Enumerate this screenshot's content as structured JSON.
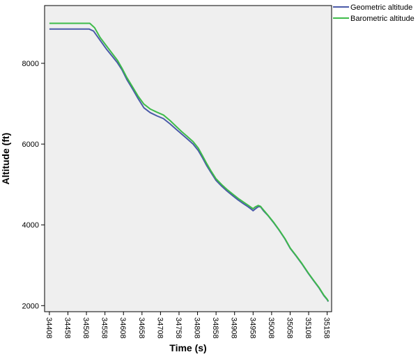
{
  "chart_data": {
    "type": "line",
    "xlabel": "Time (s)",
    "ylabel": "Altitude (ft)",
    "xlim": [
      34395,
      35170
    ],
    "ylim": [
      1850,
      9430
    ],
    "x_ticks": [
      34408,
      34458,
      34508,
      34558,
      34608,
      34658,
      34708,
      34758,
      34808,
      34858,
      34908,
      34958,
      35008,
      35058,
      35108,
      35158
    ],
    "y_ticks": [
      2000,
      4000,
      6000,
      8000
    ],
    "grid": false,
    "legend_position": "top-right",
    "series": [
      {
        "name": "Geometric altitude",
        "color": "#4a5aa8",
        "x": [
          34408,
          34508,
          34515,
          34527,
          34545,
          34563,
          34578,
          34592,
          34604,
          34617,
          34633,
          34648,
          34663,
          34680,
          34698,
          34716,
          34734,
          34751,
          34765,
          34779,
          34796,
          34810,
          34822,
          34832,
          34844,
          34858,
          34873,
          34887,
          34902,
          34917,
          34931,
          34944,
          34953,
          34958,
          34963,
          34972,
          34978,
          34986,
          34998,
          35013,
          35028,
          35044,
          35058,
          35074,
          35090,
          35107,
          35122,
          35136,
          35149,
          35158,
          35161
        ],
        "y": [
          8850,
          8850,
          8850,
          8800,
          8570,
          8340,
          8170,
          8010,
          7840,
          7600,
          7360,
          7120,
          6900,
          6780,
          6700,
          6630,
          6500,
          6360,
          6250,
          6140,
          6000,
          5840,
          5650,
          5480,
          5300,
          5100,
          4960,
          4840,
          4730,
          4620,
          4530,
          4450,
          4390,
          4350,
          4390,
          4450,
          4450,
          4350,
          4230,
          4060,
          3870,
          3650,
          3420,
          3230,
          3030,
          2800,
          2610,
          2440,
          2250,
          2150,
          2100
        ]
      },
      {
        "name": "Barometric altitude",
        "color": "#3ebb4a",
        "x": [
          34408,
          34508,
          34517,
          34530,
          34545,
          34563,
          34578,
          34592,
          34604,
          34617,
          34633,
          34648,
          34663,
          34680,
          34698,
          34716,
          34734,
          34751,
          34765,
          34779,
          34796,
          34810,
          34822,
          34832,
          34844,
          34858,
          34873,
          34887,
          34902,
          34917,
          34931,
          34944,
          34953,
          34958,
          34963,
          34972,
          34978,
          34986,
          34998,
          35013,
          35028,
          35044,
          35058,
          35074,
          35090,
          35107,
          35122,
          35136,
          35149,
          35158,
          35161
        ],
        "y": [
          8990,
          8990,
          8990,
          8880,
          8640,
          8420,
          8240,
          8070,
          7880,
          7650,
          7410,
          7180,
          6990,
          6870,
          6790,
          6720,
          6580,
          6430,
          6310,
          6200,
          6060,
          5900,
          5700,
          5530,
          5340,
          5140,
          5000,
          4880,
          4770,
          4660,
          4570,
          4490,
          4430,
          4400,
          4440,
          4480,
          4460,
          4370,
          4240,
          4070,
          3880,
          3660,
          3430,
          3240,
          3040,
          2810,
          2620,
          2450,
          2260,
          2160,
          2110
        ]
      }
    ]
  }
}
